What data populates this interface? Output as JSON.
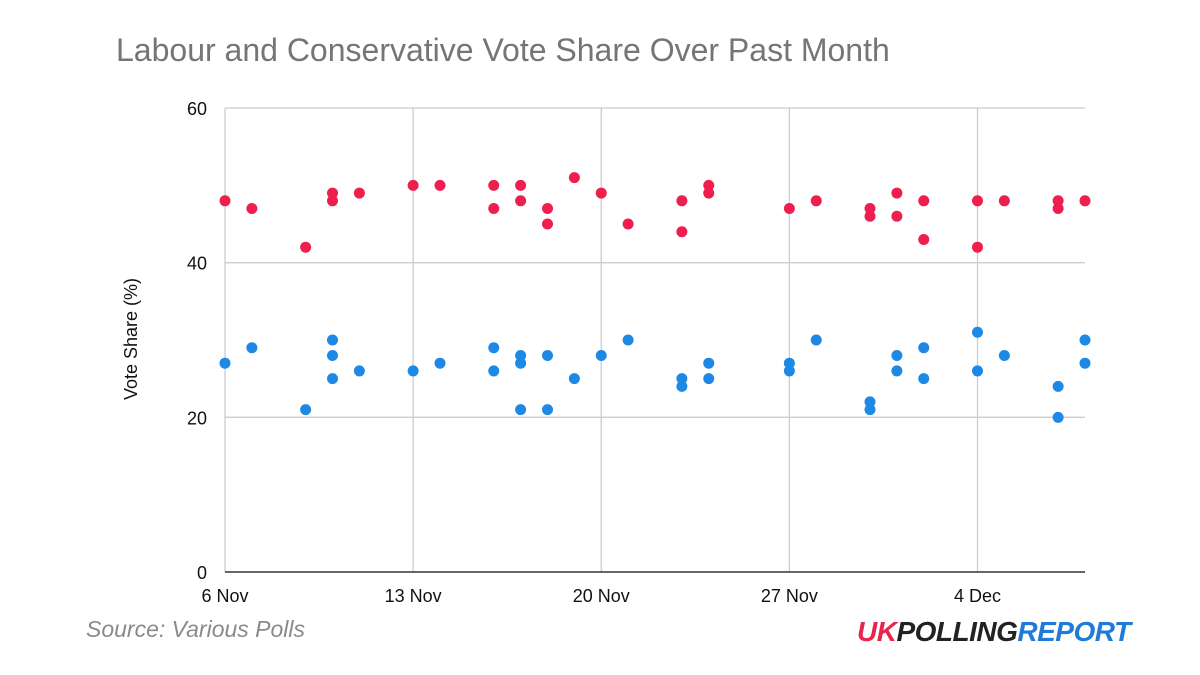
{
  "chart_data": {
    "type": "scatter",
    "title": "Labour and Conservative Vote Share Over Past Month",
    "xlabel": "",
    "ylabel": "Vote Share (%)",
    "x_axis": {
      "type": "date",
      "range": [
        "2023-11-06",
        "2023-12-08"
      ],
      "ticks": [
        {
          "date": "2023-11-06",
          "label": "6 Nov"
        },
        {
          "date": "2023-11-13",
          "label": "13 Nov"
        },
        {
          "date": "2023-11-20",
          "label": "20 Nov"
        },
        {
          "date": "2023-11-27",
          "label": "27 Nov"
        },
        {
          "date": "2023-12-04",
          "label": "4 Dec"
        }
      ]
    },
    "ylim": [
      0,
      60
    ],
    "yticks": [
      "0",
      "20",
      "40",
      "60"
    ],
    "grid": true,
    "series": [
      {
        "color": "#ee1e4e",
        "points": [
          {
            "x": "2023-11-06",
            "y": 48
          },
          {
            "x": "2023-11-07",
            "y": 47
          },
          {
            "x": "2023-11-09",
            "y": 42
          },
          {
            "x": "2023-11-10",
            "y": 49
          },
          {
            "x": "2023-11-10",
            "y": 48
          },
          {
            "x": "2023-11-11",
            "y": 49
          },
          {
            "x": "2023-11-13",
            "y": 50
          },
          {
            "x": "2023-11-14",
            "y": 50
          },
          {
            "x": "2023-11-16",
            "y": 50
          },
          {
            "x": "2023-11-16",
            "y": 47
          },
          {
            "x": "2023-11-17",
            "y": 50
          },
          {
            "x": "2023-11-17",
            "y": 48
          },
          {
            "x": "2023-11-18",
            "y": 47
          },
          {
            "x": "2023-11-18",
            "y": 45
          },
          {
            "x": "2023-11-19",
            "y": 51
          },
          {
            "x": "2023-11-20",
            "y": 49
          },
          {
            "x": "2023-11-21",
            "y": 45
          },
          {
            "x": "2023-11-23",
            "y": 48
          },
          {
            "x": "2023-11-23",
            "y": 44
          },
          {
            "x": "2023-11-24",
            "y": 50
          },
          {
            "x": "2023-11-24",
            "y": 49
          },
          {
            "x": "2023-11-27",
            "y": 47
          },
          {
            "x": "2023-11-28",
            "y": 48
          },
          {
            "x": "2023-11-30",
            "y": 47
          },
          {
            "x": "2023-11-30",
            "y": 46
          },
          {
            "x": "2023-12-01",
            "y": 49
          },
          {
            "x": "2023-12-01",
            "y": 46
          },
          {
            "x": "2023-12-02",
            "y": 48
          },
          {
            "x": "2023-12-02",
            "y": 43
          },
          {
            "x": "2023-12-04",
            "y": 48
          },
          {
            "x": "2023-12-04",
            "y": 42
          },
          {
            "x": "2023-12-05",
            "y": 48
          },
          {
            "x": "2023-12-07",
            "y": 48
          },
          {
            "x": "2023-12-07",
            "y": 47
          },
          {
            "x": "2023-12-08",
            "y": 48
          }
        ]
      },
      {
        "color": "#1e88e5",
        "points": [
          {
            "x": "2023-11-06",
            "y": 27
          },
          {
            "x": "2023-11-07",
            "y": 29
          },
          {
            "x": "2023-11-09",
            "y": 21
          },
          {
            "x": "2023-11-10",
            "y": 30
          },
          {
            "x": "2023-11-10",
            "y": 28
          },
          {
            "x": "2023-11-10",
            "y": 25
          },
          {
            "x": "2023-11-11",
            "y": 26
          },
          {
            "x": "2023-11-13",
            "y": 26
          },
          {
            "x": "2023-11-14",
            "y": 27
          },
          {
            "x": "2023-11-16",
            "y": 29
          },
          {
            "x": "2023-11-16",
            "y": 26
          },
          {
            "x": "2023-11-17",
            "y": 28
          },
          {
            "x": "2023-11-17",
            "y": 27
          },
          {
            "x": "2023-11-17",
            "y": 21
          },
          {
            "x": "2023-11-18",
            "y": 28
          },
          {
            "x": "2023-11-18",
            "y": 21
          },
          {
            "x": "2023-11-19",
            "y": 25
          },
          {
            "x": "2023-11-20",
            "y": 28
          },
          {
            "x": "2023-11-21",
            "y": 30
          },
          {
            "x": "2023-11-23",
            "y": 25
          },
          {
            "x": "2023-11-23",
            "y": 24
          },
          {
            "x": "2023-11-24",
            "y": 27
          },
          {
            "x": "2023-11-24",
            "y": 25
          },
          {
            "x": "2023-11-27",
            "y": 27
          },
          {
            "x": "2023-11-27",
            "y": 26
          },
          {
            "x": "2023-11-28",
            "y": 30
          },
          {
            "x": "2023-11-30",
            "y": 22
          },
          {
            "x": "2023-11-30",
            "y": 21
          },
          {
            "x": "2023-12-01",
            "y": 28
          },
          {
            "x": "2023-12-01",
            "y": 26
          },
          {
            "x": "2023-12-02",
            "y": 29
          },
          {
            "x": "2023-12-02",
            "y": 25
          },
          {
            "x": "2023-12-04",
            "y": 31
          },
          {
            "x": "2023-12-04",
            "y": 26
          },
          {
            "x": "2023-12-05",
            "y": 28
          },
          {
            "x": "2023-12-07",
            "y": 24
          },
          {
            "x": "2023-12-07",
            "y": 20
          },
          {
            "x": "2023-12-08",
            "y": 30
          },
          {
            "x": "2023-12-08",
            "y": 27
          }
        ]
      }
    ]
  },
  "footer": {
    "source": "Source: Various Polls",
    "logo": {
      "uk": "UK",
      "polling": "POLLING",
      "report": "REPORT"
    }
  }
}
